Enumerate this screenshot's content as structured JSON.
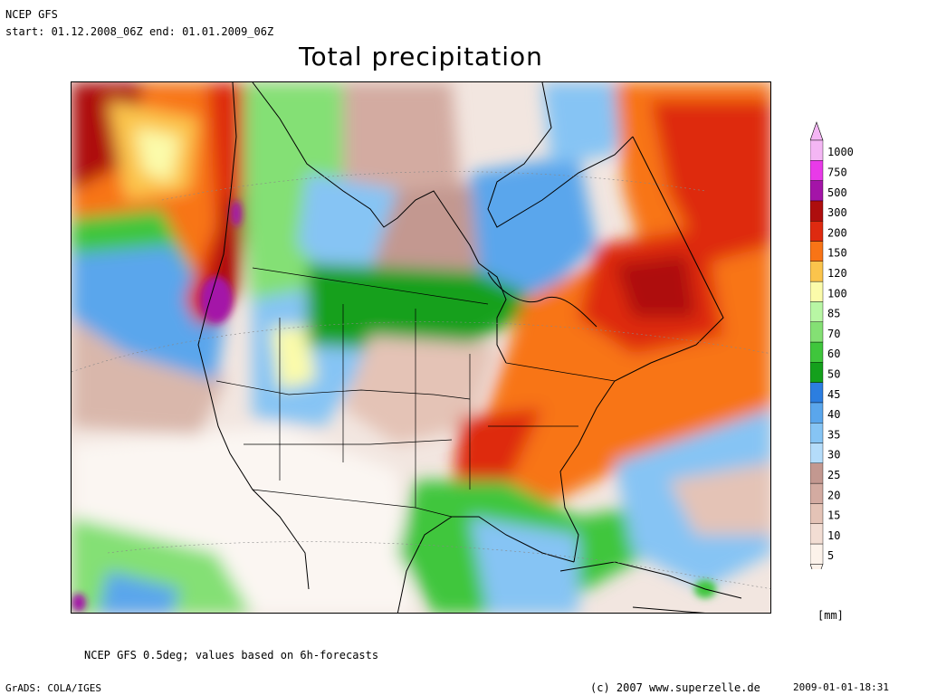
{
  "header": {
    "model": "NCEP GFS",
    "period": "start: 01.12.2008_06Z end: 01.01.2009_06Z"
  },
  "title": "Total precipitation",
  "legend": {
    "unit": "[mm]",
    "levels": [
      "5",
      "10",
      "15",
      "20",
      "25",
      "30",
      "35",
      "40",
      "45",
      "50",
      "60",
      "70",
      "85",
      "100",
      "120",
      "150",
      "200",
      "300",
      "500",
      "750",
      "1000"
    ],
    "colors": [
      "#fcf2ea",
      "#f2ddd3",
      "#e4c3b6",
      "#d3aba1",
      "#c39890",
      "#b4dcfa",
      "#86c4f4",
      "#5aa6ec",
      "#2c7ee0",
      "#14a01c",
      "#3fc63c",
      "#84e074",
      "#b8f6a4",
      "#fbfbaa",
      "#fbc44c",
      "#f87416",
      "#de2a10",
      "#ae0e0e",
      "#a414a8",
      "#e83ae8",
      "#f4b6f4"
    ]
  },
  "footnote": "NCEP GFS 0.5deg; values based on 6h-forecasts",
  "footer": {
    "software": "GrADS: COLA/IGES",
    "copyright": "(c) 2007 www.superzelle.de",
    "timestamp": "2009-01-01-18:31"
  }
}
